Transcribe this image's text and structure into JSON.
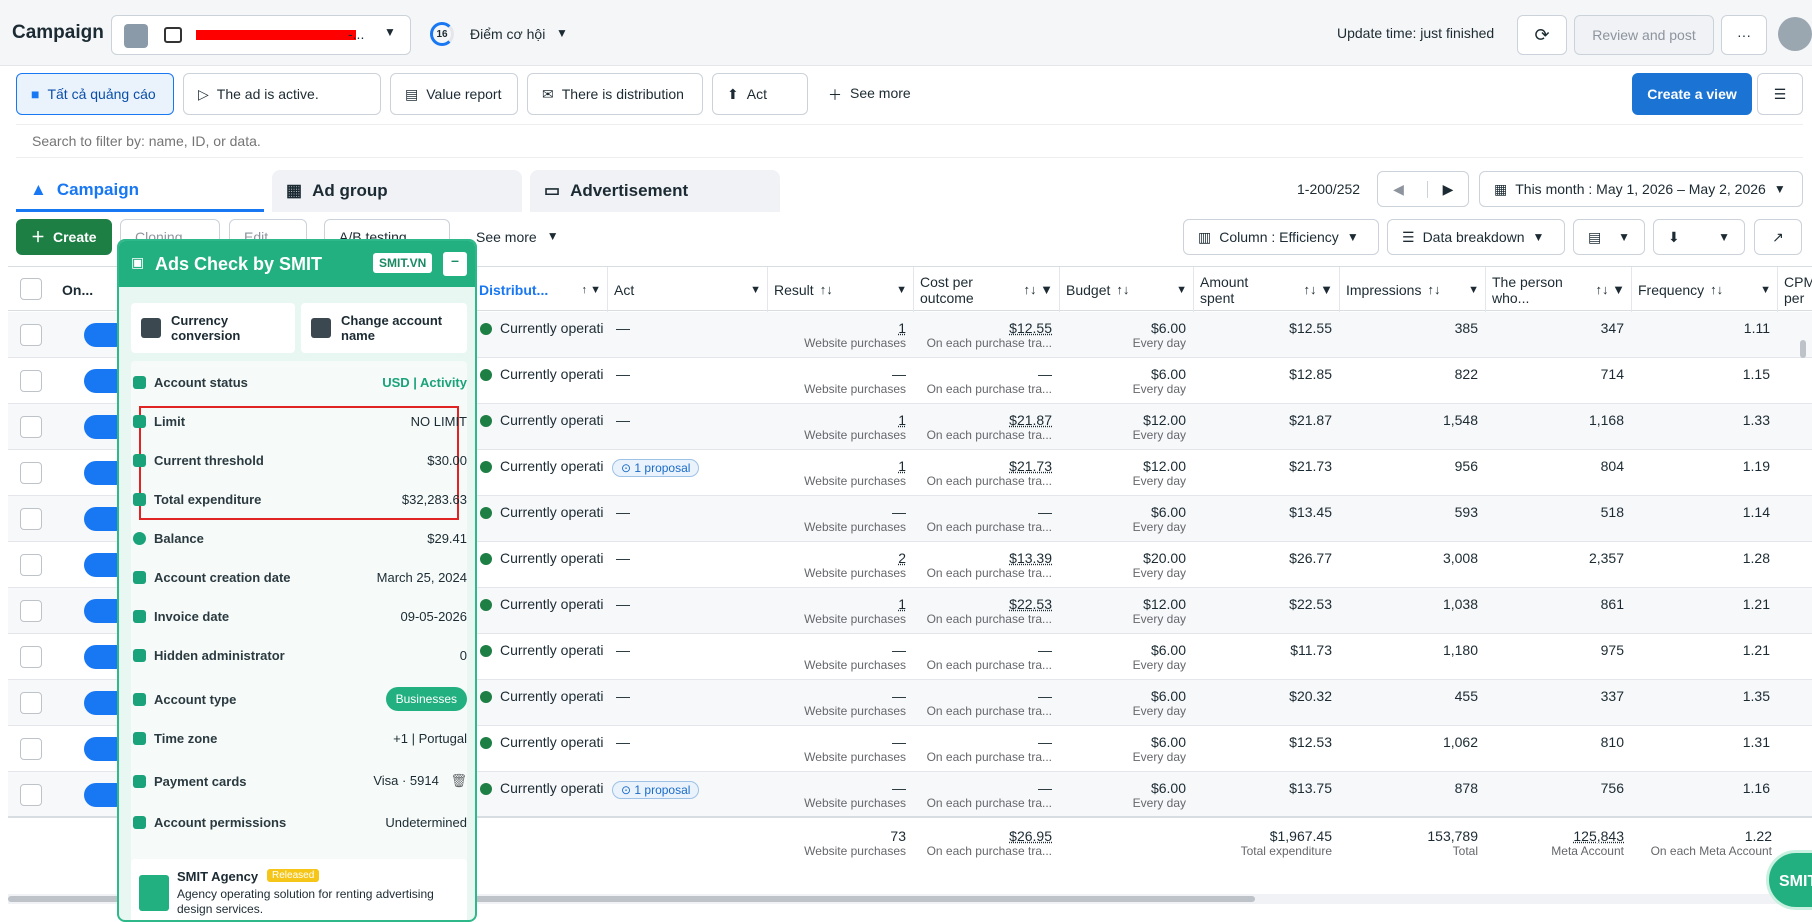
{
  "topbar": {
    "title": "Campaign",
    "account_suffix": "-...",
    "badge": "16",
    "opportunity": "Điểm cơ hội",
    "update": "Update time: just finished",
    "review": "Review and post",
    "more": "···"
  },
  "filters": {
    "items": [
      "Tất cả quảng cáo",
      "The ad is active.",
      "Value report",
      "There is distribution",
      "Act"
    ],
    "see_more": "See more",
    "create_view": "Create a view"
  },
  "search": {
    "placeholder": "Search to filter by: name, ID, or data."
  },
  "tabs": {
    "campaign": "Campaign",
    "adgroup": "Ad group",
    "ad": "Advertisement"
  },
  "pager": {
    "range": "1-200/252",
    "date": "This month : May 1, 2026 – May 2, 2026"
  },
  "toolbar": {
    "create": "Create",
    "cloning": "Cloning",
    "edit": "Edit",
    "ab": "A/B testing",
    "see_more": "See more",
    "column": "Column : Efficiency",
    "breakdown": "Data breakdown"
  },
  "headers": {
    "on": "On...",
    "dist": "Distribut...",
    "act": "Act",
    "result": "Result",
    "cpr": "Cost per outcome",
    "budget": "Budget",
    "spent": "Amount spent",
    "impr": "Impressions",
    "reach": "The person who...",
    "freq": "Frequency",
    "cpm": "CPM per"
  },
  "rows": [
    {
      "result": "1",
      "cpr": "$12.55",
      "budget": "$6.00",
      "spent": "$12.55",
      "impr": "385",
      "reach": "347",
      "freq": "1.11",
      "prop": ""
    },
    {
      "result": "—",
      "cpr": "—",
      "budget": "$6.00",
      "spent": "$12.85",
      "impr": "822",
      "reach": "714",
      "freq": "1.15",
      "prop": ""
    },
    {
      "result": "1",
      "cpr": "$21.87",
      "budget": "$12.00",
      "spent": "$21.87",
      "impr": "1,548",
      "reach": "1,168",
      "freq": "1.33",
      "prop": ""
    },
    {
      "result": "1",
      "cpr": "$21.73",
      "budget": "$12.00",
      "spent": "$21.73",
      "impr": "956",
      "reach": "804",
      "freq": "1.19",
      "prop": "1 proposal"
    },
    {
      "result": "—",
      "cpr": "—",
      "budget": "$6.00",
      "spent": "$13.45",
      "impr": "593",
      "reach": "518",
      "freq": "1.14",
      "prop": ""
    },
    {
      "result": "2",
      "cpr": "$13.39",
      "budget": "$20.00",
      "spent": "$26.77",
      "impr": "3,008",
      "reach": "2,357",
      "freq": "1.28",
      "prop": ""
    },
    {
      "result": "1",
      "cpr": "$22.53",
      "budget": "$12.00",
      "spent": "$22.53",
      "impr": "1,038",
      "reach": "861",
      "freq": "1.21",
      "prop": ""
    },
    {
      "result": "—",
      "cpr": "—",
      "budget": "$6.00",
      "spent": "$11.73",
      "impr": "1,180",
      "reach": "975",
      "freq": "1.21",
      "prop": ""
    },
    {
      "result": "—",
      "cpr": "—",
      "budget": "$6.00",
      "spent": "$20.32",
      "impr": "455",
      "reach": "337",
      "freq": "1.35",
      "prop": ""
    },
    {
      "result": "—",
      "cpr": "—",
      "budget": "$6.00",
      "spent": "$12.53",
      "impr": "1,062",
      "reach": "810",
      "freq": "1.31",
      "prop": ""
    },
    {
      "result": "—",
      "cpr": "—",
      "budget": "$6.00",
      "spent": "$13.75",
      "impr": "878",
      "reach": "756",
      "freq": "1.16",
      "prop": "1 proposal"
    }
  ],
  "row_labels": {
    "dist": "Currently operating",
    "act": "—",
    "result_sub": "Website purchases",
    "cpr_sub": "On each purchase tra...",
    "budget_sub": "Every day"
  },
  "totals": {
    "result": "73",
    "result_sub": "Website purchases",
    "cpr": "$26.95",
    "cpr_sub": "On each purchase tra...",
    "spent": "$1,967.45",
    "spent_sub": "Total expenditure",
    "impr": "153,789",
    "impr_sub": "Total",
    "reach": "125,843",
    "reach_sub": "Meta Account",
    "freq": "1.22",
    "freq_sub": "On each Meta Account"
  },
  "panel": {
    "title": "Ads Check by SMIT",
    "tag": "SMIT.VN",
    "minus": "–",
    "currency": "Currency conversion",
    "change": "Change account name",
    "status_l": "Account status",
    "status_v": "USD | Activity",
    "limit_l": "Limit",
    "limit_v": "NO LIMIT",
    "threshold_l": "Current threshold",
    "threshold_v": "$30.00",
    "total_l": "Total expenditure",
    "total_v": "$32,283.63",
    "balance_l": "Balance",
    "balance_v": "$29.41",
    "created_l": "Account creation date",
    "created_v": "March 25, 2024",
    "invoice_l": "Invoice date",
    "invoice_v": "09-05-2026",
    "hidden_l": "Hidden administrator",
    "hidden_v": "0",
    "type_l": "Account type",
    "type_v": "Businesses",
    "tz_l": "Time zone",
    "tz_v": "+1 | Portugal",
    "cards_l": "Payment cards",
    "cards_v": "Visa · 5914",
    "perm_l": "Account permissions",
    "perm_v": "Undetermined",
    "agency": "SMIT Agency",
    "released": "Released",
    "agency_desc": "Agency operating solution for renting advertising design services."
  },
  "fab": "SMIT",
  "colors": {
    "accent": "#1877f2",
    "green": "#2fb88a",
    "red": "#e02424"
  }
}
